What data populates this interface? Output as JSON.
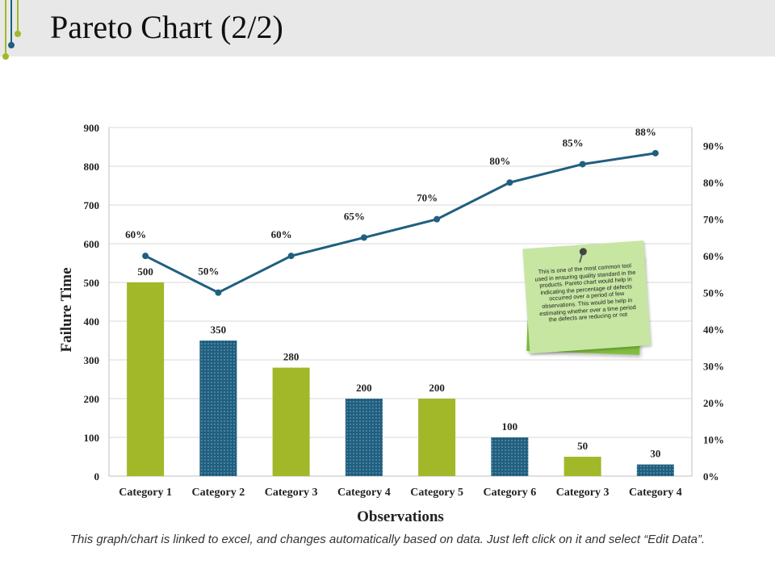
{
  "slide": {
    "title": "Pareto Chart (2/2)",
    "footer": "This graph/chart is linked to excel, and changes automatically based on data. Just left click on it and select “Edit Data”.",
    "note": "This is one of the most common tool used in ensuring quality standard in the products. Pareto chart would help in indicating the percentage of defects occurred over a period of few observations. This would be help in estimating whether over a time period the defects are reducing or not"
  },
  "chart_data": {
    "type": "bar",
    "categories": [
      "Category 1",
      "Category 2",
      "Category 3",
      "Category 4",
      "Category 5",
      "Category 6",
      "Category 3",
      "Category 4"
    ],
    "series": [
      {
        "values": [
          500,
          350,
          280,
          200,
          200,
          100,
          50,
          30
        ],
        "colors": [
          "#a2b829",
          "#1f5f80",
          "#a2b829",
          "#1f5f80",
          "#a2b829",
          "#1f5f80",
          "#a2b829",
          "#1f5f80"
        ]
      },
      {
        "type": "line",
        "axis": "right",
        "values": [
          60,
          50,
          60,
          65,
          70,
          80,
          85,
          88
        ],
        "labels": [
          "60%",
          "50%",
          "60%",
          "65%",
          "70%",
          "80%",
          "85%",
          "88%"
        ],
        "color": "#1f5f80"
      }
    ],
    "xlabel": "Observations",
    "ylabel": "Failure Time",
    "ylim": [
      0,
      900
    ],
    "yticks": [
      "0",
      "100",
      "200",
      "300",
      "400",
      "500",
      "600",
      "700",
      "800",
      "900"
    ],
    "y2lim": [
      0,
      95
    ],
    "y2ticks": [
      "0%",
      "10%",
      "20%",
      "30%",
      "40%",
      "50%",
      "60%",
      "70%",
      "80%",
      "90%"
    ],
    "grid": true
  }
}
